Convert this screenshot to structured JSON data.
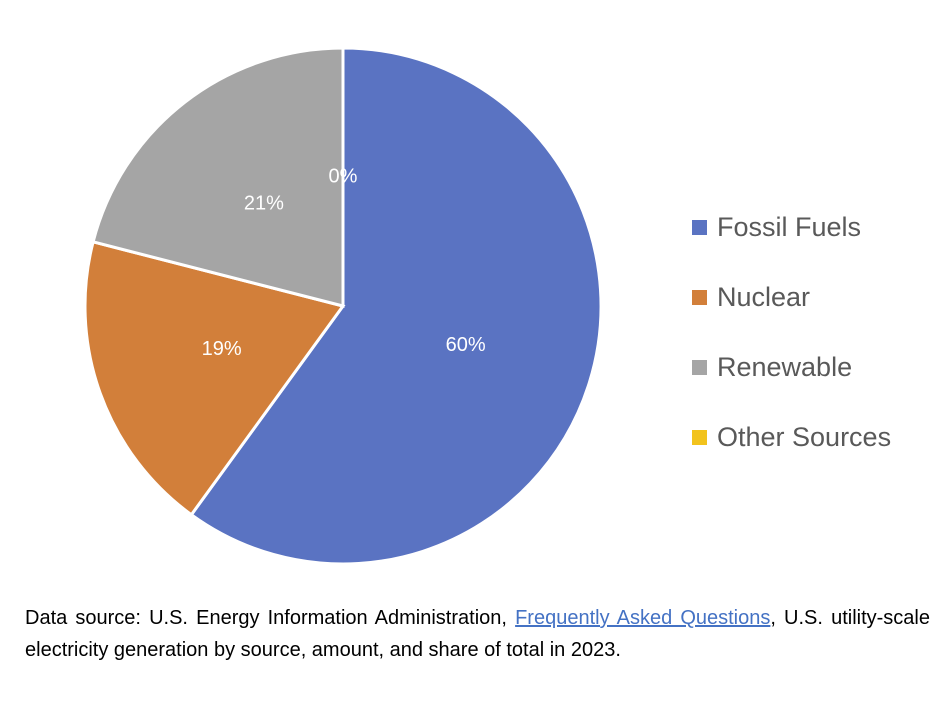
{
  "chart_data": {
    "type": "pie",
    "title": "",
    "slices": [
      {
        "label": "Fossil Fuels",
        "value": 60,
        "display": "60%",
        "color": "#5a73c2"
      },
      {
        "label": "Nuclear",
        "value": 19,
        "display": "19%",
        "color": "#d27f3a"
      },
      {
        "label": "Renewable",
        "value": 21,
        "display": "21%",
        "color": "#a5a5a5"
      },
      {
        "label": "Other Sources",
        "value": 0,
        "display": "0%",
        "color": "#f2c31d"
      }
    ],
    "legend_position": "right"
  },
  "source": {
    "prefix": "Data source: U.S. Energy Information Administration, ",
    "link_text": "Frequently Asked Questions",
    "suffix": ", U.S. utility-scale electricity generation by source, amount, and share of total in 2023."
  }
}
